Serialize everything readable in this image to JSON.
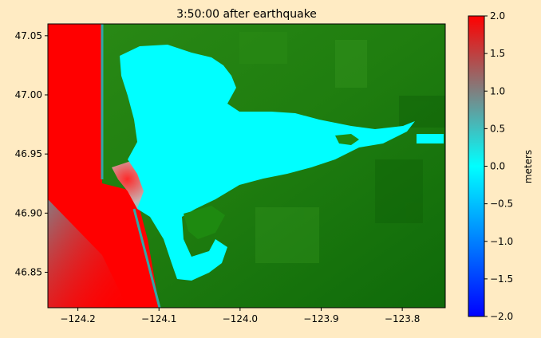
{
  "figure": {
    "background": "#ffebc3"
  },
  "chart_data": {
    "type": "heatmap",
    "title": "3:50:00 after earthquake",
    "xlabel": "",
    "ylabel": "",
    "xlim": [
      -124.237,
      -123.747
    ],
    "ylim": [
      46.82,
      47.06
    ],
    "x_ticks": [
      -124.2,
      -124.1,
      -124.0,
      -123.9,
      -123.8
    ],
    "x_tick_labels": [
      "−124.2",
      "−124.1",
      "−124.0",
      "−123.9",
      "−123.8"
    ],
    "y_ticks": [
      46.85,
      46.9,
      46.95,
      47.0,
      47.05
    ],
    "y_tick_labels": [
      "46.85",
      "46.90",
      "46.95",
      "47.00",
      "47.05"
    ],
    "grid": false,
    "colorbar": {
      "label": "meters",
      "range": [
        -2.0,
        2.0
      ],
      "ticks": [
        2.0,
        1.5,
        1.0,
        0.5,
        0.0,
        -0.5,
        -1.0,
        -1.5,
        -2.0
      ],
      "tick_labels": [
        "2.0",
        "1.5",
        "1.0",
        "0.5",
        "0.0",
        "−0.5",
        "−1.0",
        "−1.5",
        "−2.0"
      ],
      "colors": [
        "#0000ff",
        "#00ffff",
        "#ff0000"
      ]
    },
    "description_values": {
      "land_color": "#1e8a10",
      "ocean_offshore_surface_m": 2.0,
      "bay_surface_m": 0.0
    }
  }
}
